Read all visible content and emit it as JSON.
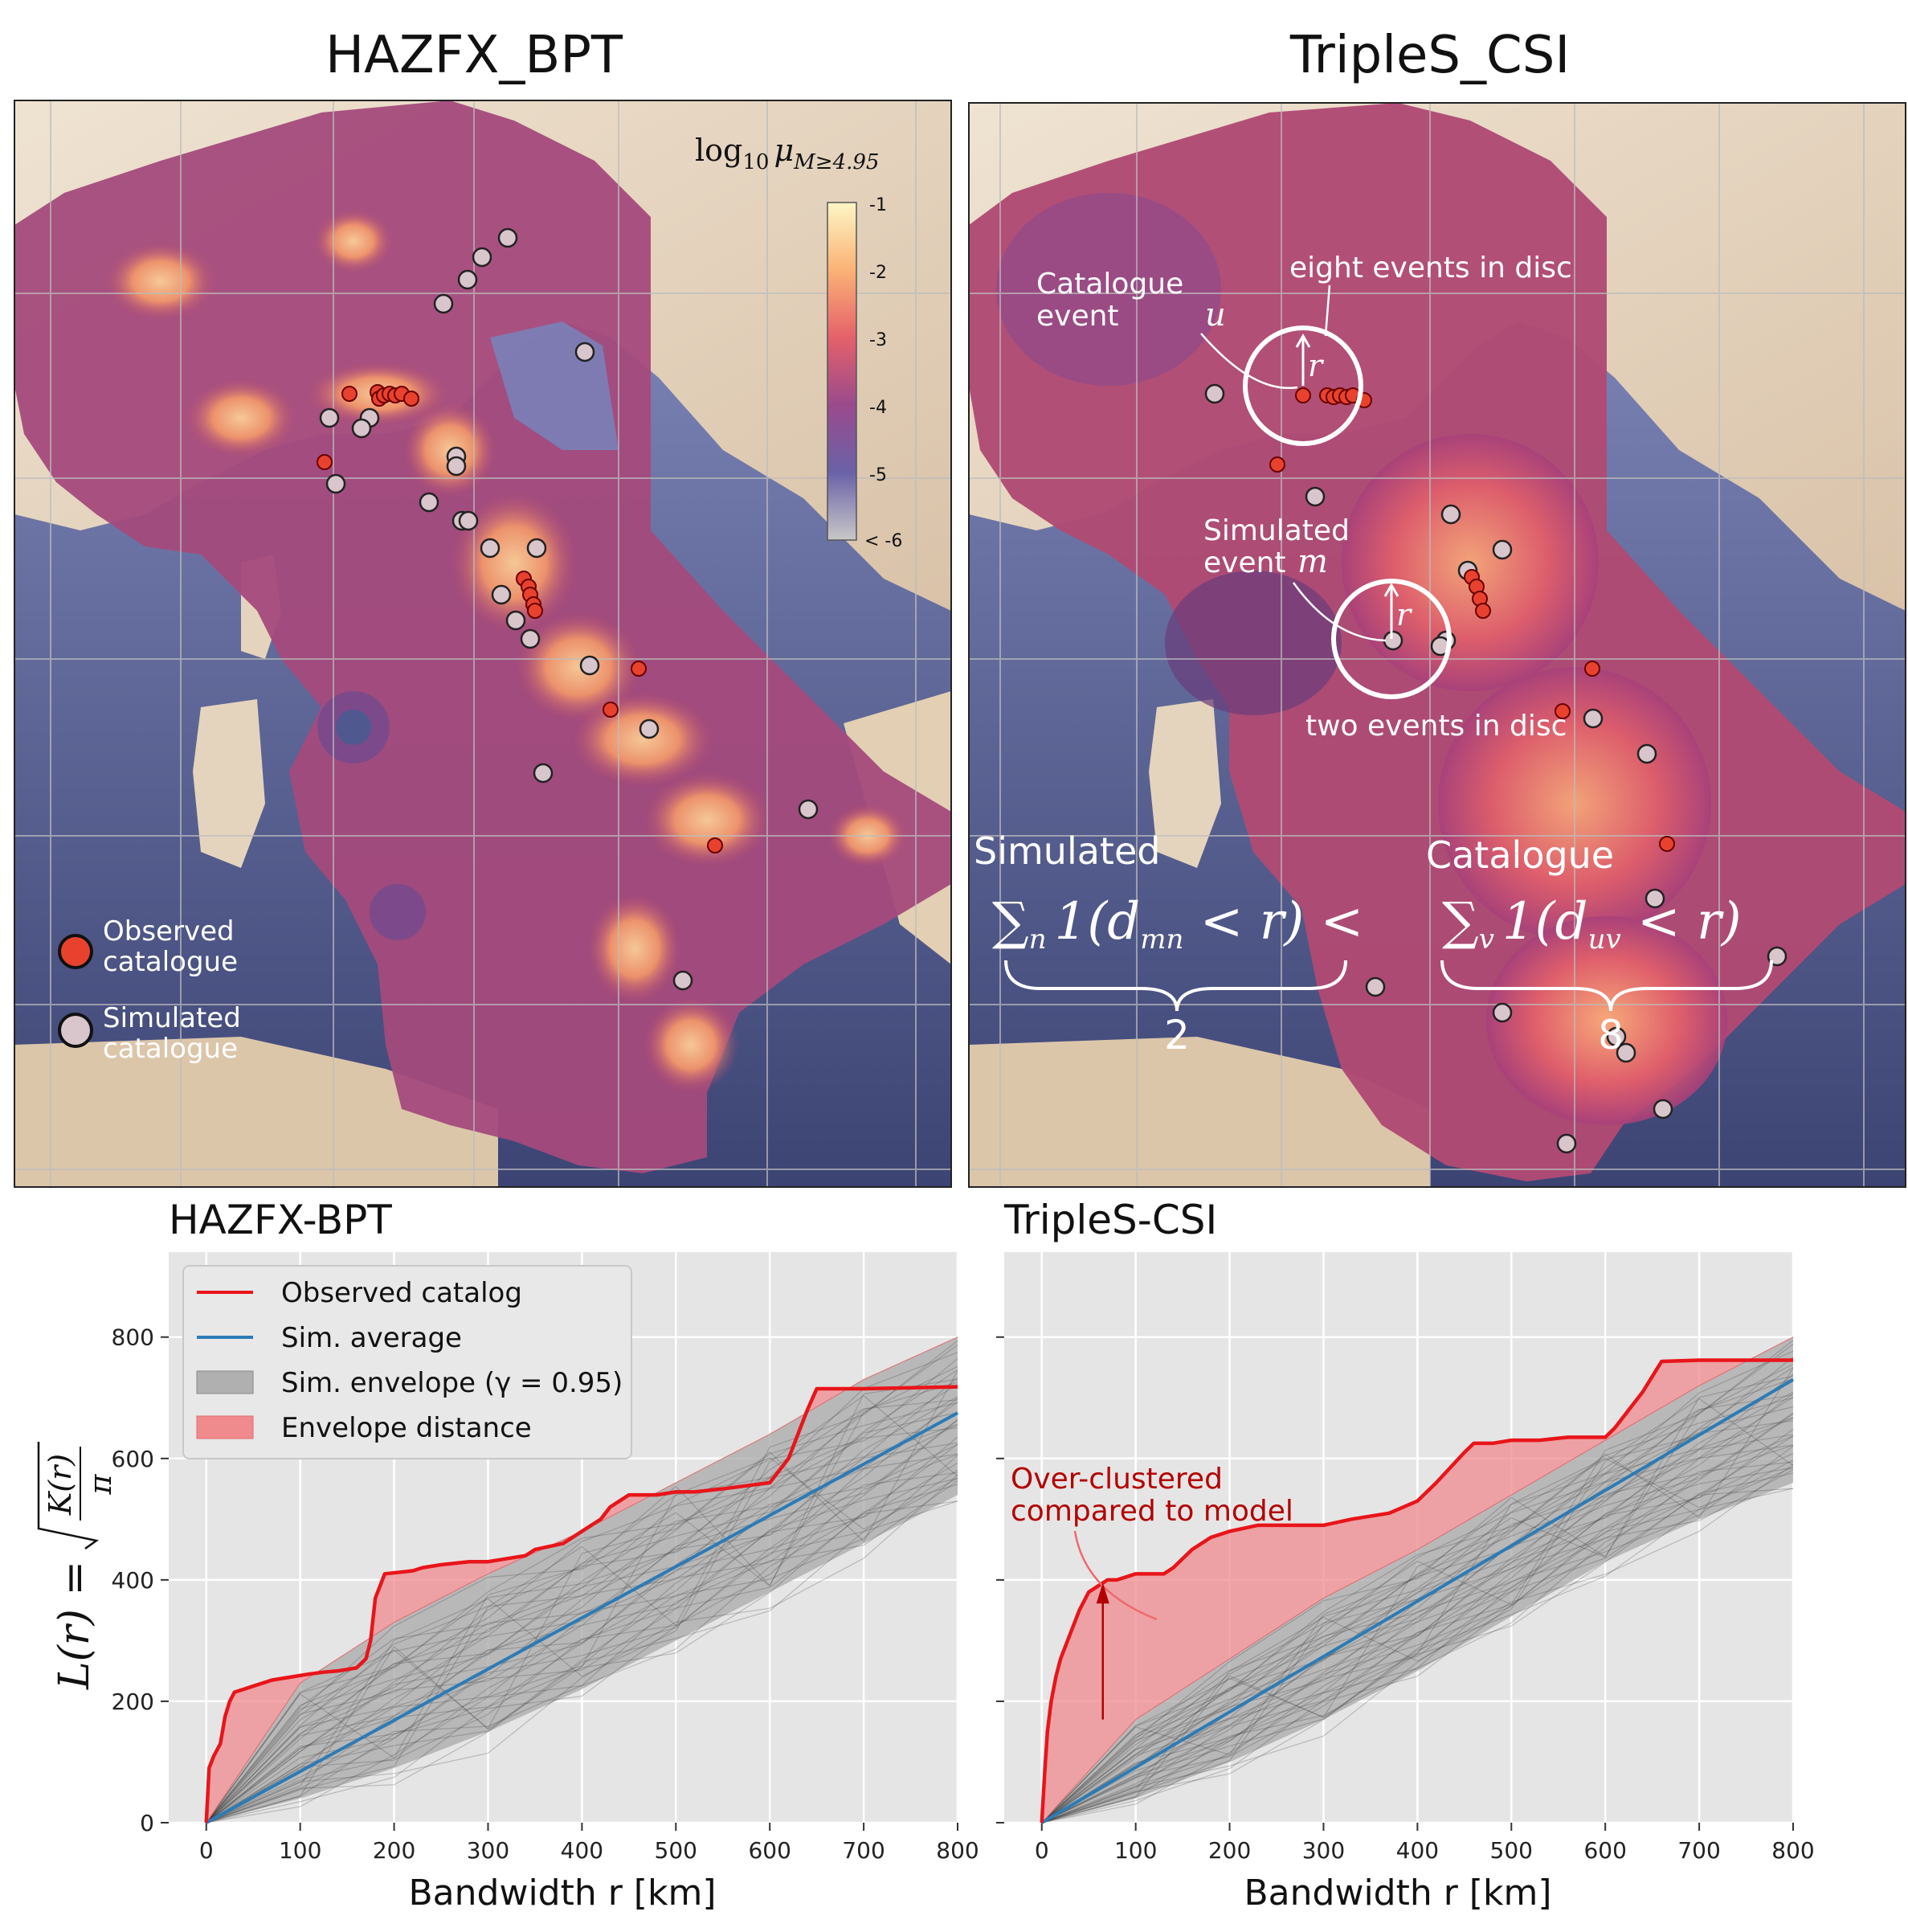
{
  "maps": [
    {
      "title": "HAZFX_BPT",
      "colorbar": {
        "label": "log10 μM≥4.95",
        "label_main": "log",
        "label_sub": "10",
        "label_mu": "μ",
        "label_musub": "M≥4.95",
        "ticks": [
          "-1",
          "-2",
          "-3",
          "-4",
          "-5",
          "< -6"
        ]
      },
      "legend": [
        {
          "label_1": "Observed",
          "label_2": "catalogue",
          "color": "#e8422f"
        },
        {
          "label_1": "Simulated",
          "label_2": "catalogue",
          "color": "#d8c6cc"
        }
      ]
    },
    {
      "title": "TripleS_CSI",
      "annotations": {
        "catalogue_event_1": "Catalogue",
        "catalogue_event_2": "event",
        "u": "u",
        "r": "r",
        "eight_events": "eight events in disc",
        "simulated_event_1": "Simulated",
        "simulated_event_2": "event",
        "m": "m",
        "two_events": "two events in disc",
        "simulated_header": "Simulated",
        "catalogue_header": "Catalogue",
        "sum_n": "∑",
        "sub_n": "n",
        "indicator_1": "1(d",
        "sub_mn": "mn",
        "lt_r_1": " < r) <",
        "sum_v": "∑",
        "sub_v": "v",
        "indicator_2": "1(d",
        "sub_uv": "uv",
        "lt_r_2": " < r)",
        "count_sim": "2",
        "count_cat": "8"
      }
    }
  ],
  "colors": {
    "observed": "#e8151a",
    "sim_average": "#2c7bb6",
    "envelope": "#9e9e9e",
    "distance": "#ef8a8d",
    "plot_bg": "#e5e5e5",
    "annot_red": "#b30000"
  },
  "chart_data": [
    {
      "type": "line",
      "title": "HAZFX-BPT",
      "xlabel": "Bandwidth r  [km]",
      "ylabel": "L(r) = √(K(r)/π)",
      "ylabel_main": "L(r) =",
      "ylabel_num": "K(r)",
      "ylabel_den": "π",
      "xlim": [
        -40,
        800
      ],
      "ylim": [
        0,
        940
      ],
      "xticks": [
        0,
        100,
        200,
        300,
        400,
        500,
        600,
        700,
        800
      ],
      "yticks": [
        0,
        200,
        400,
        600,
        800
      ],
      "grid": true,
      "legend_position": "top-left",
      "legend": [
        "Observed catalog",
        "Sim. average",
        "Sim. envelope (γ = 0.95)",
        "Envelope distance"
      ],
      "series": [
        {
          "name": "Observed catalog",
          "x": [
            0,
            3,
            8,
            15,
            20,
            25,
            30,
            40,
            50,
            70,
            90,
            110,
            125,
            140,
            160,
            170,
            175,
            180,
            190,
            220,
            230,
            250,
            280,
            300,
            320,
            340,
            350,
            380,
            400,
            420,
            430,
            450,
            480,
            500,
            520,
            550,
            600,
            610,
            620,
            640,
            650,
            700,
            800
          ],
          "y": [
            0,
            90,
            110,
            130,
            175,
            200,
            215,
            220,
            225,
            235,
            240,
            245,
            248,
            250,
            255,
            270,
            300,
            370,
            410,
            415,
            420,
            425,
            430,
            430,
            435,
            440,
            450,
            460,
            480,
            500,
            520,
            540,
            540,
            545,
            545,
            550,
            560,
            580,
            600,
            680,
            715,
            715,
            718
          ]
        },
        {
          "name": "Sim. average",
          "x": [
            0,
            800
          ],
          "y": [
            0,
            675
          ]
        }
      ],
      "envelope": {
        "x": [
          0,
          100,
          200,
          300,
          400,
          500,
          600,
          700,
          800
        ],
        "lower": [
          0,
          40,
          90,
          150,
          220,
          300,
          380,
          460,
          540
        ],
        "upper": [
          0,
          230,
          330,
          410,
          480,
          560,
          640,
          730,
          800
        ]
      }
    },
    {
      "type": "line",
      "title": "TripleS-CSI",
      "xlabel": "Bandwidth r  [km]",
      "xlim": [
        -40,
        800
      ],
      "ylim": [
        0,
        940
      ],
      "xticks": [
        0,
        100,
        200,
        300,
        400,
        500,
        600,
        700,
        800
      ],
      "yticks": [
        0,
        200,
        400,
        600,
        800
      ],
      "grid": true,
      "annotation": "Over-clustered compared to model",
      "annotation_1": "Over-clustered",
      "annotation_2": "compared to model",
      "series": [
        {
          "name": "Observed catalog",
          "x": [
            0,
            3,
            6,
            10,
            15,
            20,
            30,
            40,
            50,
            60,
            70,
            80,
            100,
            130,
            140,
            160,
            180,
            200,
            230,
            280,
            300,
            330,
            370,
            400,
            420,
            450,
            460,
            480,
            500,
            530,
            560,
            600,
            610,
            640,
            660,
            700,
            800
          ],
          "y": [
            0,
            80,
            150,
            200,
            240,
            270,
            310,
            350,
            380,
            390,
            400,
            400,
            410,
            410,
            420,
            450,
            470,
            480,
            490,
            490,
            490,
            500,
            510,
            530,
            560,
            610,
            625,
            625,
            630,
            630,
            635,
            635,
            650,
            710,
            760,
            762,
            762
          ]
        },
        {
          "name": "Sim. average",
          "x": [
            0,
            800
          ],
          "y": [
            0,
            730
          ]
        }
      ],
      "envelope": {
        "x": [
          0,
          100,
          200,
          300,
          400,
          500,
          600,
          700,
          800
        ],
        "lower": [
          0,
          40,
          100,
          170,
          250,
          340,
          430,
          500,
          560
        ],
        "upper": [
          0,
          170,
          270,
          370,
          450,
          540,
          630,
          720,
          800
        ]
      }
    }
  ]
}
